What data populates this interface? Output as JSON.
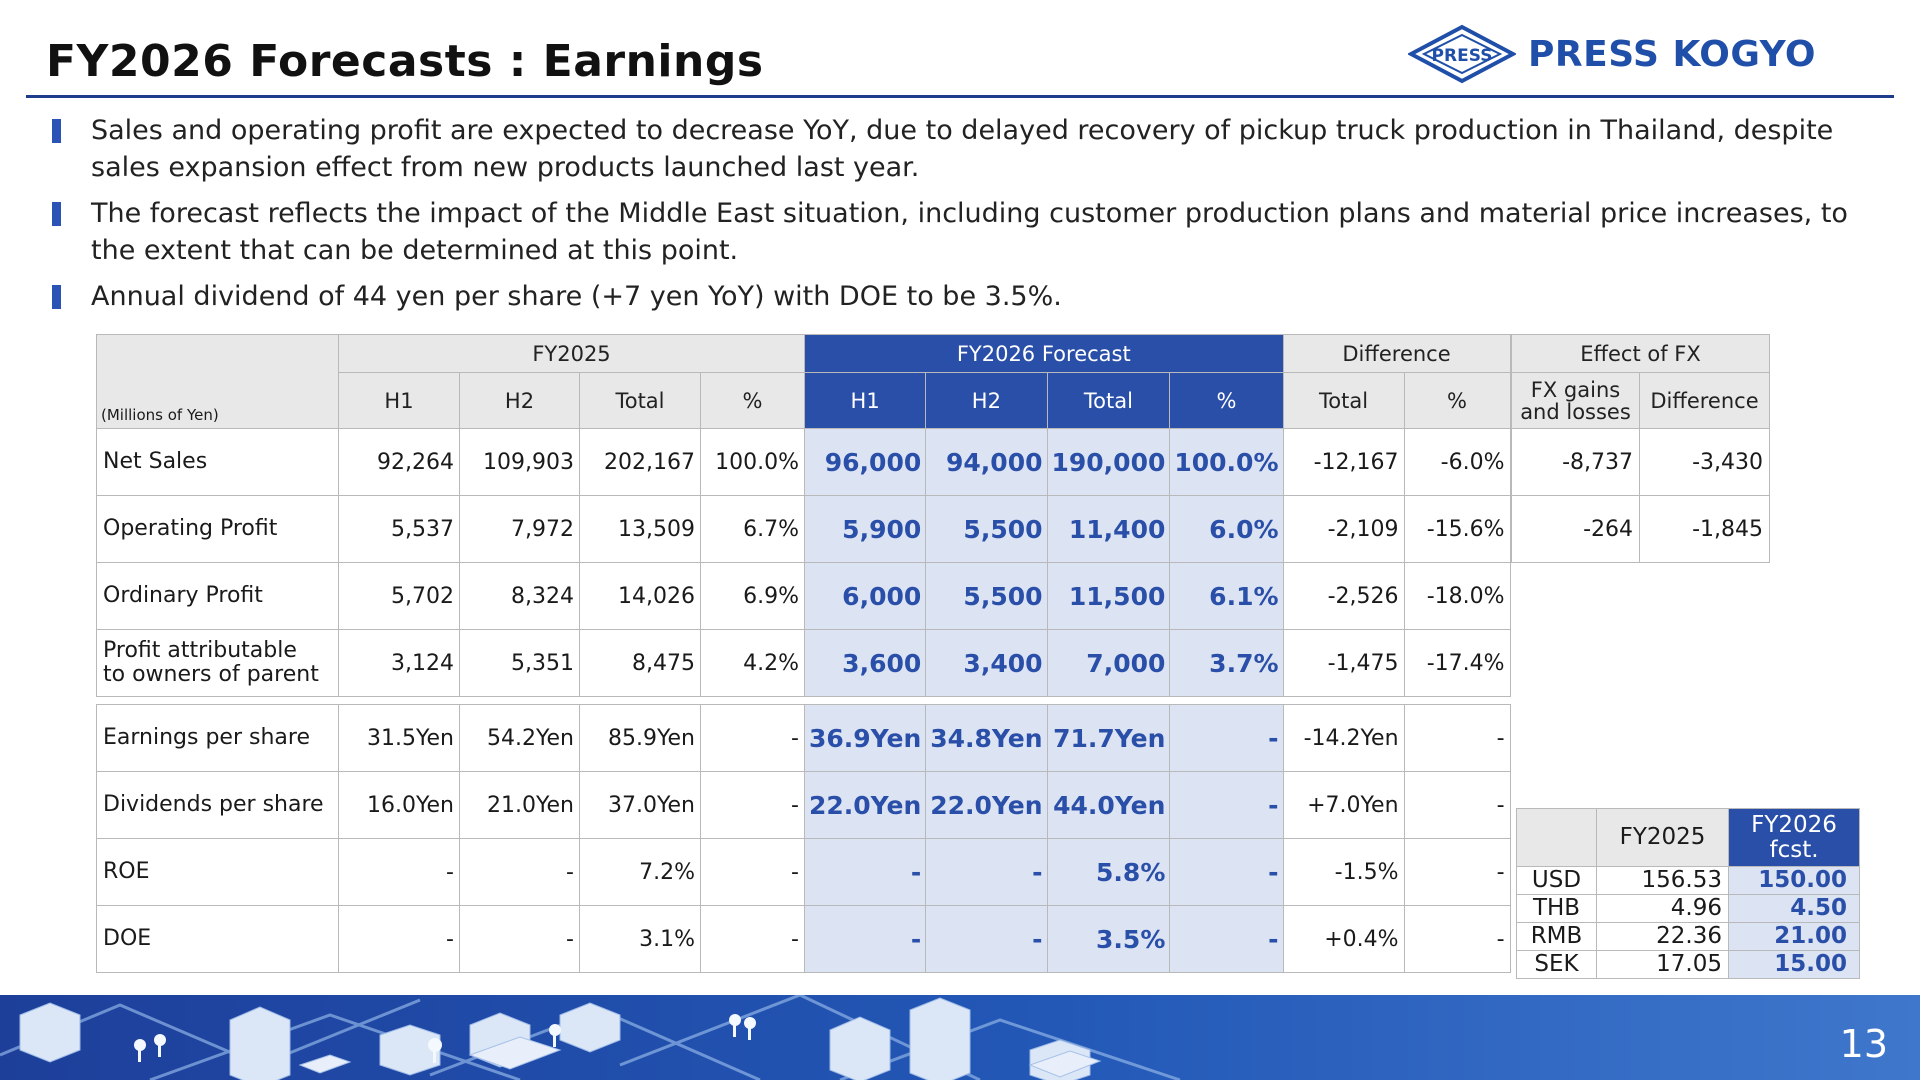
{
  "header": {
    "title": "FY2026 Forecasts : Earnings",
    "logo_mark_text": "PRESS",
    "logo_text": "PRESS KOGYO"
  },
  "bullets": [
    "Sales and operating profit are expected to decrease YoY, due to delayed recovery of pickup truck production in Thailand, despite sales expansion effect from new products launched last year.",
    "The forecast reflects the impact of the Middle East situation, including customer production plans and material price increases, to the extent that can be determined at this point.",
    "Annual dividend of 44 yen per share (+7 yen YoY) with DOE to be 3.5%."
  ],
  "main_table": {
    "unit": "(Millions of Yen)",
    "groups": {
      "fy2025": "FY2025",
      "fy2026": "FY2026 Forecast",
      "diff": "Difference"
    },
    "cols": {
      "h1": "H1",
      "h2": "H2",
      "total": "Total",
      "pct": "%"
    },
    "rows": [
      {
        "label": "Net Sales",
        "fy25": [
          "92,264",
          "109,903",
          "202,167",
          "100.0%"
        ],
        "fy26": [
          "96,000",
          "94,000",
          "190,000",
          "100.0%"
        ],
        "diff": [
          "-12,167",
          "-6.0%"
        ]
      },
      {
        "label": "Operating Profit",
        "fy25": [
          "5,537",
          "7,972",
          "13,509",
          "6.7%"
        ],
        "fy26": [
          "5,900",
          "5,500",
          "11,400",
          "6.0%"
        ],
        "diff": [
          "-2,109",
          "-15.6%"
        ]
      },
      {
        "label": "Ordinary Profit",
        "fy25": [
          "5,702",
          "8,324",
          "14,026",
          "6.9%"
        ],
        "fy26": [
          "6,000",
          "5,500",
          "11,500",
          "6.1%"
        ],
        "diff": [
          "-2,526",
          "-18.0%"
        ]
      },
      {
        "label_1": "Profit attributable",
        "label_2": "to owners of parent",
        "fy25": [
          "3,124",
          "5,351",
          "8,475",
          "4.2%"
        ],
        "fy26": [
          "3,600",
          "3,400",
          "7,000",
          "3.7%"
        ],
        "diff": [
          "-1,475",
          "-17.4%"
        ]
      }
    ],
    "rows2": [
      {
        "label": "Earnings per share",
        "fy25": [
          "31.5Yen",
          "54.2Yen",
          "85.9Yen",
          "-"
        ],
        "fy26": [
          "36.9Yen",
          "34.8Yen",
          "71.7Yen",
          "-"
        ],
        "diff": [
          "-14.2Yen",
          "-"
        ]
      },
      {
        "label": "Dividends per share",
        "fy25": [
          "16.0Yen",
          "21.0Yen",
          "37.0Yen",
          "-"
        ],
        "fy26": [
          "22.0Yen",
          "22.0Yen",
          "44.0Yen",
          "-"
        ],
        "diff": [
          "+7.0Yen",
          "-"
        ]
      },
      {
        "label": "ROE",
        "fy25": [
          "-",
          "-",
          "7.2%",
          "-"
        ],
        "fy26": [
          "-",
          "-",
          "5.8%",
          "-"
        ],
        "diff": [
          "-1.5%",
          "-"
        ]
      },
      {
        "label": "DOE",
        "fy25": [
          "-",
          "-",
          "3.1%",
          "-"
        ],
        "fy26": [
          "-",
          "-",
          "3.5%",
          "-"
        ],
        "diff": [
          "+0.4%",
          "-"
        ]
      }
    ]
  },
  "fx_effect": {
    "title": "Effect of FX",
    "col1_line1": "FX gains",
    "col1_line2": "and losses",
    "col2": "Difference",
    "rows": [
      [
        "-8,737",
        "-3,430"
      ],
      [
        "-264",
        "-1,845"
      ]
    ]
  },
  "rates": {
    "col_fy2025": "FY2025",
    "col_fy2026_line1": "FY2026",
    "col_fy2026_line2": "fcst.",
    "rows": [
      {
        "currency": "USD",
        "fy2025": "156.53",
        "fy2026": "150.00"
      },
      {
        "currency": "THB",
        "fy2025": "4.96",
        "fy2026": "4.50"
      },
      {
        "currency": "RMB",
        "fy2025": "22.36",
        "fy2026": "21.00"
      },
      {
        "currency": "SEK",
        "fy2025": "17.05",
        "fy2026": "15.00"
      }
    ]
  },
  "footer": {
    "page_number": "13"
  },
  "colors": {
    "accent_blue": "#2a4fa8",
    "forecast_fill": "#dce3f3",
    "header_gray": "#e8e8e8"
  }
}
